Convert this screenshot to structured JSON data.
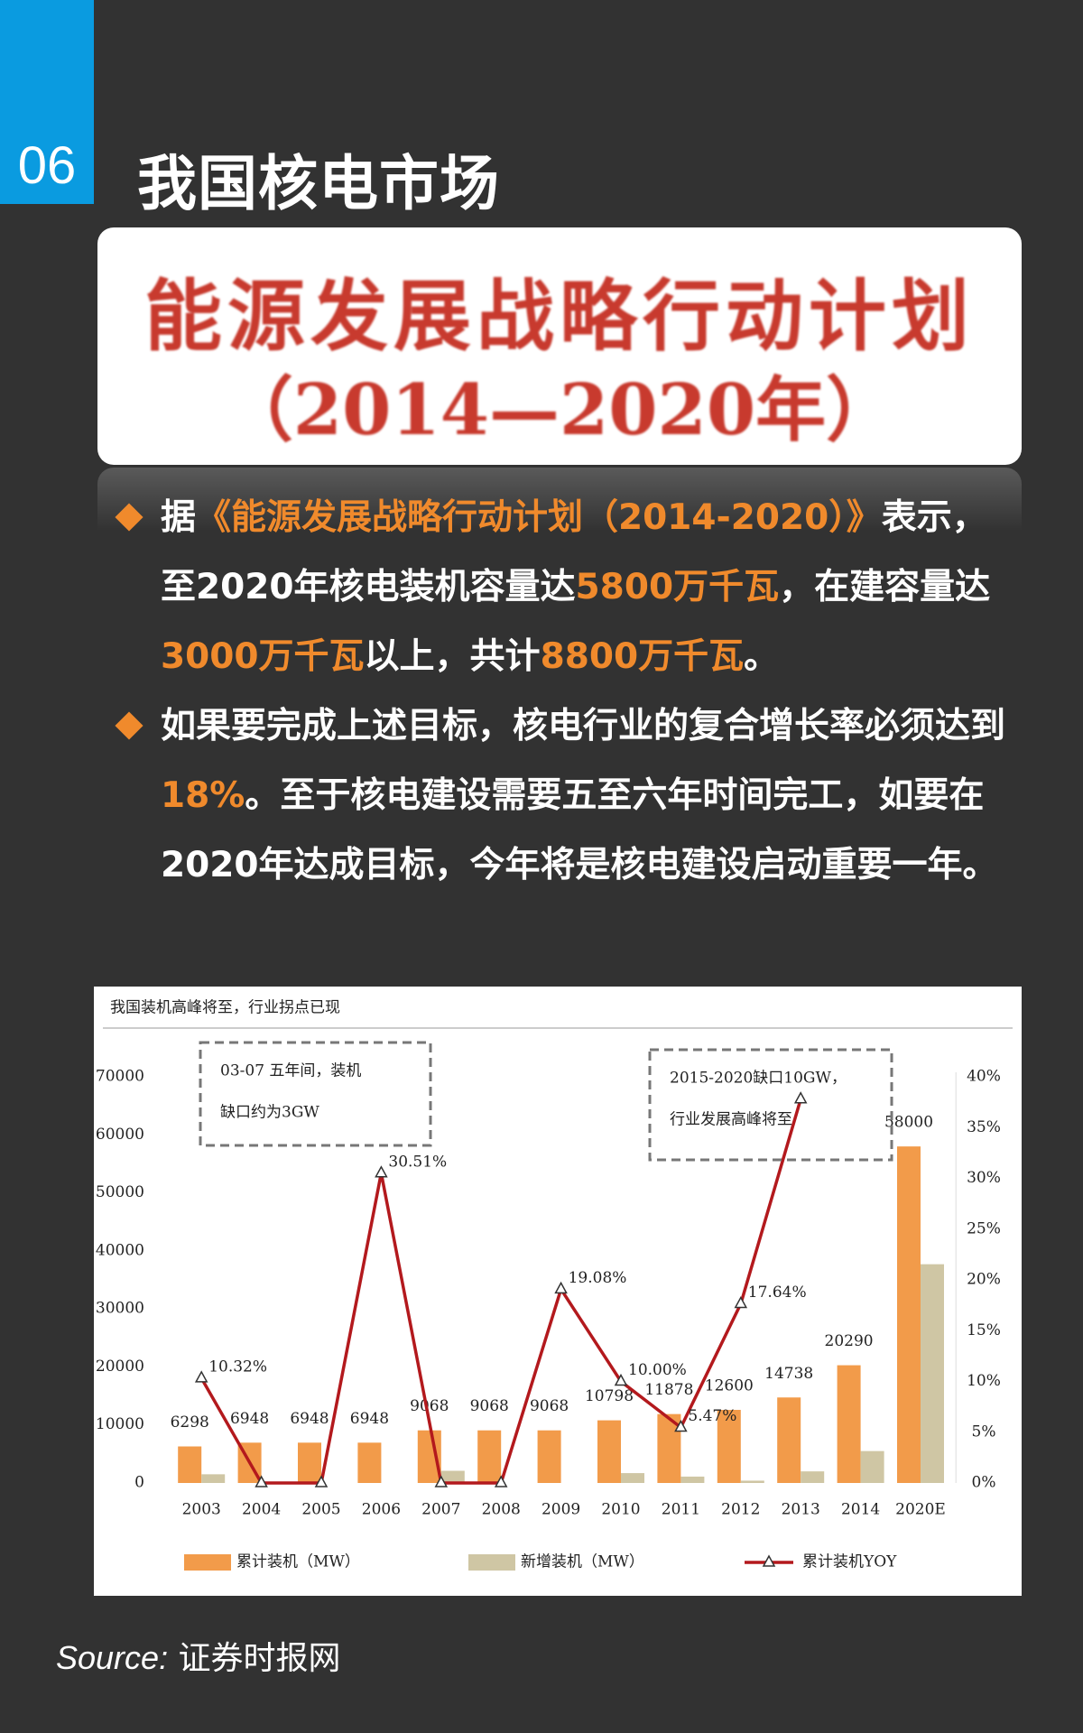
{
  "header": {
    "number": "06",
    "title": "我国核电市场"
  },
  "banner": {
    "line1": "能源发展战略行动计划",
    "line2": "（2014—2020年）"
  },
  "bullets": [
    [
      {
        "text": "据",
        "highlight": false
      },
      {
        "text": "《能源发展战略行动计划（2014-2020）》",
        "highlight": true
      },
      {
        "text": "表示，至2020年核电装机容量达",
        "highlight": false
      },
      {
        "text": "5800万千瓦",
        "highlight": true
      },
      {
        "text": "，在建容量达",
        "highlight": false
      },
      {
        "text": "3000万千瓦",
        "highlight": true
      },
      {
        "text": "以上，共计",
        "highlight": false
      },
      {
        "text": "8800万千瓦",
        "highlight": true
      },
      {
        "text": "。",
        "highlight": false
      }
    ],
    [
      {
        "text": "如果要完成上述目标，核电行业的复合增长率必须达到",
        "highlight": false
      },
      {
        "text": "18%",
        "highlight": true
      },
      {
        "text": "。至于核电建设需要五至六年时间完工，如要在2020年达成目标，今年将是核电建设启动重要一年。",
        "highlight": false
      }
    ]
  ],
  "chart_data": {
    "type": "combo",
    "title": "我国装机高峰将至，行业拐点已现",
    "categories": [
      "2003",
      "2004",
      "2005",
      "2006",
      "2007",
      "2008",
      "2009",
      "2010",
      "2011",
      "2012",
      "2013",
      "2014",
      "2020E"
    ],
    "series": [
      {
        "name": "累计装机（MW）",
        "color": "#f29b4a",
        "kind": "bar",
        "values": [
          6298,
          6948,
          6948,
          6948,
          9068,
          9068,
          9068,
          10798,
          11878,
          12600,
          14738,
          20290,
          58000
        ]
      },
      {
        "name": "新增装机（MW）",
        "color": "#cfc6a4",
        "kind": "bar",
        "values": [
          1500,
          0,
          0,
          0,
          2100,
          0,
          0,
          1700,
          1100,
          400,
          2000,
          5500,
          37700
        ]
      },
      {
        "name": "累计装机YOY",
        "color": "#b3191d",
        "kind": "line",
        "axis": "y2",
        "values": [
          10.32,
          0,
          0,
          30.51,
          0,
          0,
          19.08,
          10.0,
          5.47,
          17.64,
          37.8,
          null,
          null
        ],
        "value_labels": [
          "10.32%",
          null,
          null,
          "30.51%",
          null,
          null,
          "19.08%",
          "10.00%",
          "5.47%",
          "17.64%",
          null,
          null,
          null
        ]
      }
    ],
    "ylim": [
      0,
      70000
    ],
    "yticks": [
      0,
      10000,
      20000,
      30000,
      40000,
      50000,
      60000,
      70000
    ],
    "y2lim": [
      0,
      40
    ],
    "y2ticks": [
      {
        "value": 0,
        "label": "0%"
      },
      {
        "value": 5,
        "label": "5%"
      },
      {
        "value": 10,
        "label": "10%"
      },
      {
        "value": 15,
        "label": "15%"
      },
      {
        "value": 20,
        "label": "20%"
      },
      {
        "value": 25,
        "label": "25%"
      },
      {
        "value": 30,
        "label": "30%"
      },
      {
        "value": 35,
        "label": "35%"
      },
      {
        "value": 40,
        "label": "40%"
      }
    ],
    "annotations": [
      [
        "03-07 五年间，装机",
        "缺口约为3GW"
      ],
      [
        "2015-2020缺口10GW，",
        "行业发展高峰将至"
      ]
    ]
  },
  "source": {
    "label": "Source:",
    "text": "证券时报网"
  }
}
